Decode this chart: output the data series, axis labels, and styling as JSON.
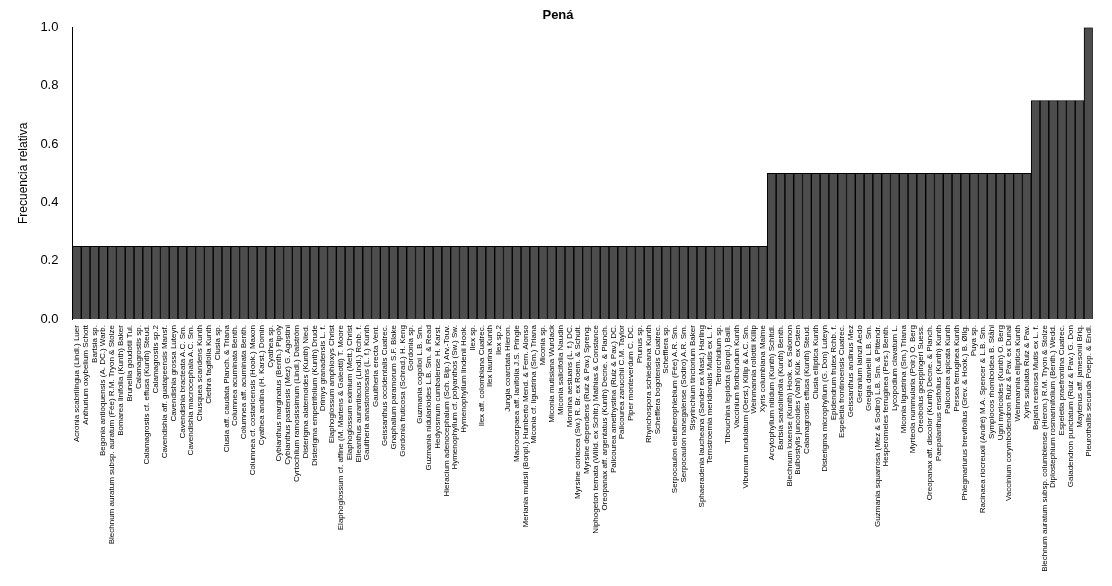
{
  "chart_data": {
    "type": "bar",
    "title": "Pená",
    "ylabel": "Frecuencia relativa",
    "categories": [
      "Acronia scabrilingua (Lindl.) Luer",
      "Anthurium oxybelium Schott",
      "Bartsia sp.",
      "Begonia antioquensis (A. DC.) Warb.",
      "Blechnum auratum subsp. auratum (Fée) R.M. Tryon & Stolze",
      "Bomarea linifolia (Kunth) Baker",
      "Brunellia goudotii Tul.",
      "Calamagrostis sp.",
      "Calamagrostis cf. effusa (Kunth) Steud.",
      "Calamagrostis sp.2",
      "Cavendishia aff. guatapeensis Mansf.",
      "Cavendishia grossa Luteyn",
      "Cavendishia bracteata A.C. Sm.",
      "Cavendishia macrocephala A.C. Sm.",
      "Chusquea scandens Kunth",
      "Clethra fagifolia Kunth",
      "Clusia sp.",
      "Clusia aff. caudata Planch. & Triana",
      "Columnea acuminata Benth.",
      "Columnea aff. acuminata Benth.",
      "Columnea cf. costaricensis (Hook.) Maxon",
      "Cyathea andina (H. Karst.) Domin",
      "Cyathea sp.",
      "Cybianthus marginatus (Benth.) Pipoly",
      "Cybianthus pastensis (Mez) G. Agostini",
      "Cyrtochilum ramosissimum (Lindl.) Dalström",
      "Disterigma alaternoides (Kunth) Nied.",
      "Disterigma empetrifolium (Kunth) Drude",
      "Drimys granadensis L. f.",
      "Elaphoglossum amphioxys Christ",
      "Elaphoglossum cf. affine (M. Martens & Galeotti) T. Moore",
      "Elaphoglossum eximium (Mett.) Christ",
      "Elleanthus aurantiacus (Lindl.) Rchb. f.",
      "Gaultheria anastomosans (L. f.) Kunth",
      "Gaultheria erecta Vent.",
      "Geissanthus occidentalis Cuatrec.",
      "Gnaphalium paramorum S.F. Blake",
      "Gordonia fruticosa (Schrad.) H. Keng",
      "Gordonia sp.",
      "Guzmania cogolloi L.B. Sm.",
      "Guzmania nidularioides L.B. Sm. & Read",
      "Hedyosmum cumbalense H. Karst.",
      "Hieracium adenocephalum (Sch. Bip.) Arv.-Touv.",
      "Hymenophyllum cf. polyanthos (Sw.) Sw.",
      "Hymenophyllum lindenii Hook.",
      "Ilex sp.",
      "Ilex aff. colombiana Cuatrec.",
      "Ilex laurina Kunth",
      "Ilex sp.2",
      "Jungia coarctata Hieron.",
      "Macrocarpaea aff. lanifolia J.S. Pringle",
      "Meriania mutisii (Bonpl.) Humberto Mend. & Fern. Alonso",
      "Miconia cf. ligustrina (Sm.) Triana",
      "Miconia sp.",
      "Miconia mutisiana Wurdack",
      "Miconia salicifolia Naudin",
      "Monnina aestuans (L. f.) DC.",
      "Myrsine coriacea (Sw.) R. Br. ex Roem. & Schult.",
      "Myrsine dependens (Ruiz & Pav.) Spreng.",
      "Niphogeton ternata (Willd. ex Schltr.) Mathias & Constance",
      "Oreopanax aff. argentatus (Kunth) Decne. & Planch.",
      "Palicourea amethystina (Ruiz & Pav.) DC.",
      "Palicourea zarucchii C.M. Taylor",
      "Piper monteverdum C. DC.",
      "Prunus sp.",
      "Rhynchospora schiedeana Kunth",
      "Schefflera bogotensis Cuatrec.",
      "Schefflera sp.",
      "Serpocaulon eleutherophlebium (Fée) A.R. Sm.",
      "Serpocaulon nanegalense (Sodiro) A.R. Sm.",
      "Sisyrinchium tinctorium Baker",
      "Sphaeradenia laucheana (Sander ex Mast.) Harling",
      "Ternstroemia meridionalis Mutis ex L. f.",
      "Tetrorchidium sp.",
      "Tibouchina lepidota (Bonpl.) Baill.",
      "Vaccinium floribundum Kunth",
      "Viburnum undulatum (Oerst.) Killip & A.C. Sm.",
      "Weinmannia rollottii Killip",
      "Xyris columbiana Malme",
      "Arcytophyllum nitidum (Kunth) Schltdl.",
      "Bartsia santolinifolia (Kunth) Benth.",
      "Blechnum loxense (Kunth) Hook. ex Salomon",
      "Bulbostylis juncoides (Vahl) Kük. ex Osten",
      "Calamagrostis effusa (Kunth) Steud.",
      "Clusia elliptica Kunth",
      "Disterigma microphyllum (G. Don) Luteyn",
      "Epidendrum frutex Rchb. f.",
      "Espeletia frontinoensis Cuatrec.",
      "Geissanthus andinus Mez",
      "Geranium lainzii Aedo",
      "Greigia danielii L.B. Sm.",
      "Guzmania squarrosa (Mez & Sodiro) L.B. Sm. & Pittendr.",
      "Hesperomeles ferruginea (Pers.) Benth.",
      "Lycopodium clavatum L.",
      "Miconia ligustrina (Sm.) Triana",
      "Myrteola nummularia (Poir.) O. Berg",
      "Oreobolus goeppingeri Suess.",
      "Oreopanax aff. discolor (Kunth) Decne. & Planch.",
      "Paepalanthus ensifolius (Kunth) Kunth",
      "Palicourea apicata Kunth",
      "Persea ferruginea Kunth",
      "Phlegmariurus brevifolius (Grev. & Hook.) B. Øllg.",
      "Puya sp.",
      "Racinaea riocreuxii (André) M.A. Spencer & L.B. Sm.",
      "Symplocos rhomboidea B. Ståhl",
      "Ugni myricoides (Kunth) O. Berg",
      "Vaccinium corymbodendron Ruiz & Pav. ex Dunal",
      "Weinmannia elliptica Kunth",
      "Xyris subulata Ruiz & Pav.",
      "Bejaria resinosa Mutis ex L. f.",
      "Blechnum auratum subsp. columbiense (Hieron.) R.M. Tryon & Stolze",
      "Diplostephium rosmarinifolium (Benth.) Wedd.",
      "Espeletia praefrontina Cuatrec.",
      "Gaiadendron punctatum (Ruiz & Pav.) G. Don",
      "Maytenus aff. jamesonii Briq.",
      "Pleurothallis secunda Poepp. & Endl."
    ],
    "values": [
      0.25,
      0.25,
      0.25,
      0.25,
      0.25,
      0.25,
      0.25,
      0.25,
      0.25,
      0.25,
      0.25,
      0.25,
      0.25,
      0.25,
      0.25,
      0.25,
      0.25,
      0.25,
      0.25,
      0.25,
      0.25,
      0.25,
      0.25,
      0.25,
      0.25,
      0.25,
      0.25,
      0.25,
      0.25,
      0.25,
      0.25,
      0.25,
      0.25,
      0.25,
      0.25,
      0.25,
      0.25,
      0.25,
      0.25,
      0.25,
      0.25,
      0.25,
      0.25,
      0.25,
      0.25,
      0.25,
      0.25,
      0.25,
      0.25,
      0.25,
      0.25,
      0.25,
      0.25,
      0.25,
      0.25,
      0.25,
      0.25,
      0.25,
      0.25,
      0.25,
      0.25,
      0.25,
      0.25,
      0.25,
      0.25,
      0.25,
      0.25,
      0.25,
      0.25,
      0.25,
      0.25,
      0.25,
      0.25,
      0.25,
      0.25,
      0.25,
      0.25,
      0.25,
      0.25,
      0.5,
      0.5,
      0.5,
      0.5,
      0.5,
      0.5,
      0.5,
      0.5,
      0.5,
      0.5,
      0.5,
      0.5,
      0.5,
      0.5,
      0.5,
      0.5,
      0.5,
      0.5,
      0.5,
      0.5,
      0.5,
      0.5,
      0.5,
      0.5,
      0.5,
      0.5,
      0.5,
      0.5,
      0.5,
      0.5,
      0.75,
      0.75,
      0.75,
      0.75,
      0.75,
      0.75,
      1.0
    ],
    "color": "#4d4d4d",
    "ylim": [
      0,
      1
    ],
    "yticks": [
      {
        "value": 0,
        "label": "0.0"
      },
      {
        "value": 0.2,
        "label": "0.2"
      },
      {
        "value": 0.4,
        "label": "0.4"
      },
      {
        "value": 0.6,
        "label": "0.6"
      },
      {
        "value": 0.8,
        "label": "0.8"
      },
      {
        "value": 1,
        "label": "1.0"
      }
    ],
    "grid": false
  }
}
